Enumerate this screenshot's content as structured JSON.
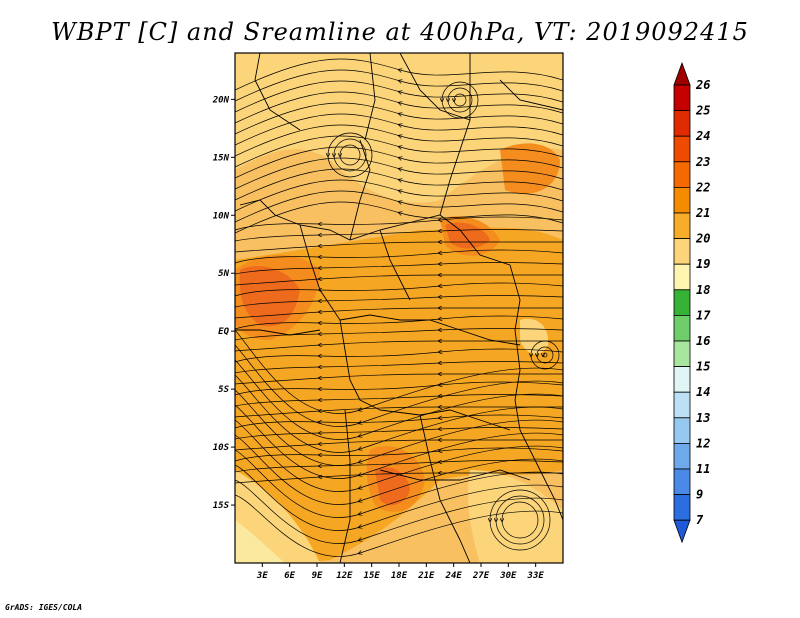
{
  "title": "WBPT [C] and Sreamline at 400hPa, VT: 2019092415",
  "credit": "GrADS: IGES/COLA",
  "map": {
    "lat_ticks": [
      "20N",
      "15N",
      "10N",
      "5N",
      "EQ",
      "5S",
      "10S",
      "15S"
    ],
    "lon_ticks": [
      "3E",
      "6E",
      "9E",
      "12E",
      "15E",
      "18E",
      "21E",
      "24E",
      "27E",
      "30E",
      "33E"
    ],
    "lon_range": [
      0,
      36
    ],
    "lat_range": [
      -20,
      24
    ]
  },
  "colorbar": {
    "labels": [
      "26",
      "25",
      "24",
      "23",
      "22",
      "21",
      "20",
      "19",
      "18",
      "17",
      "16",
      "15",
      "14",
      "13",
      "12",
      "11",
      "9",
      "7"
    ],
    "colors": [
      "#a00000",
      "#c40000",
      "#e02a00",
      "#ee4a00",
      "#f56a00",
      "#f58c00",
      "#f8ad2a",
      "#fcd57a",
      "#fff4b0",
      "#36b336",
      "#6ecf6a",
      "#a8e6a0",
      "#e0f5f5",
      "#bee0f5",
      "#96c8f0",
      "#6eaaeb",
      "#4a8ae6",
      "#2a6ee0",
      "#1e5ad8"
    ],
    "units": "C"
  },
  "field_colors": {
    "c19": "#fcd57a",
    "c20": "#f8c060",
    "c21": "#f5a623",
    "c22": "#f58c1e",
    "c23": "#ee6a1c",
    "c18": "#fbe9a0"
  }
}
